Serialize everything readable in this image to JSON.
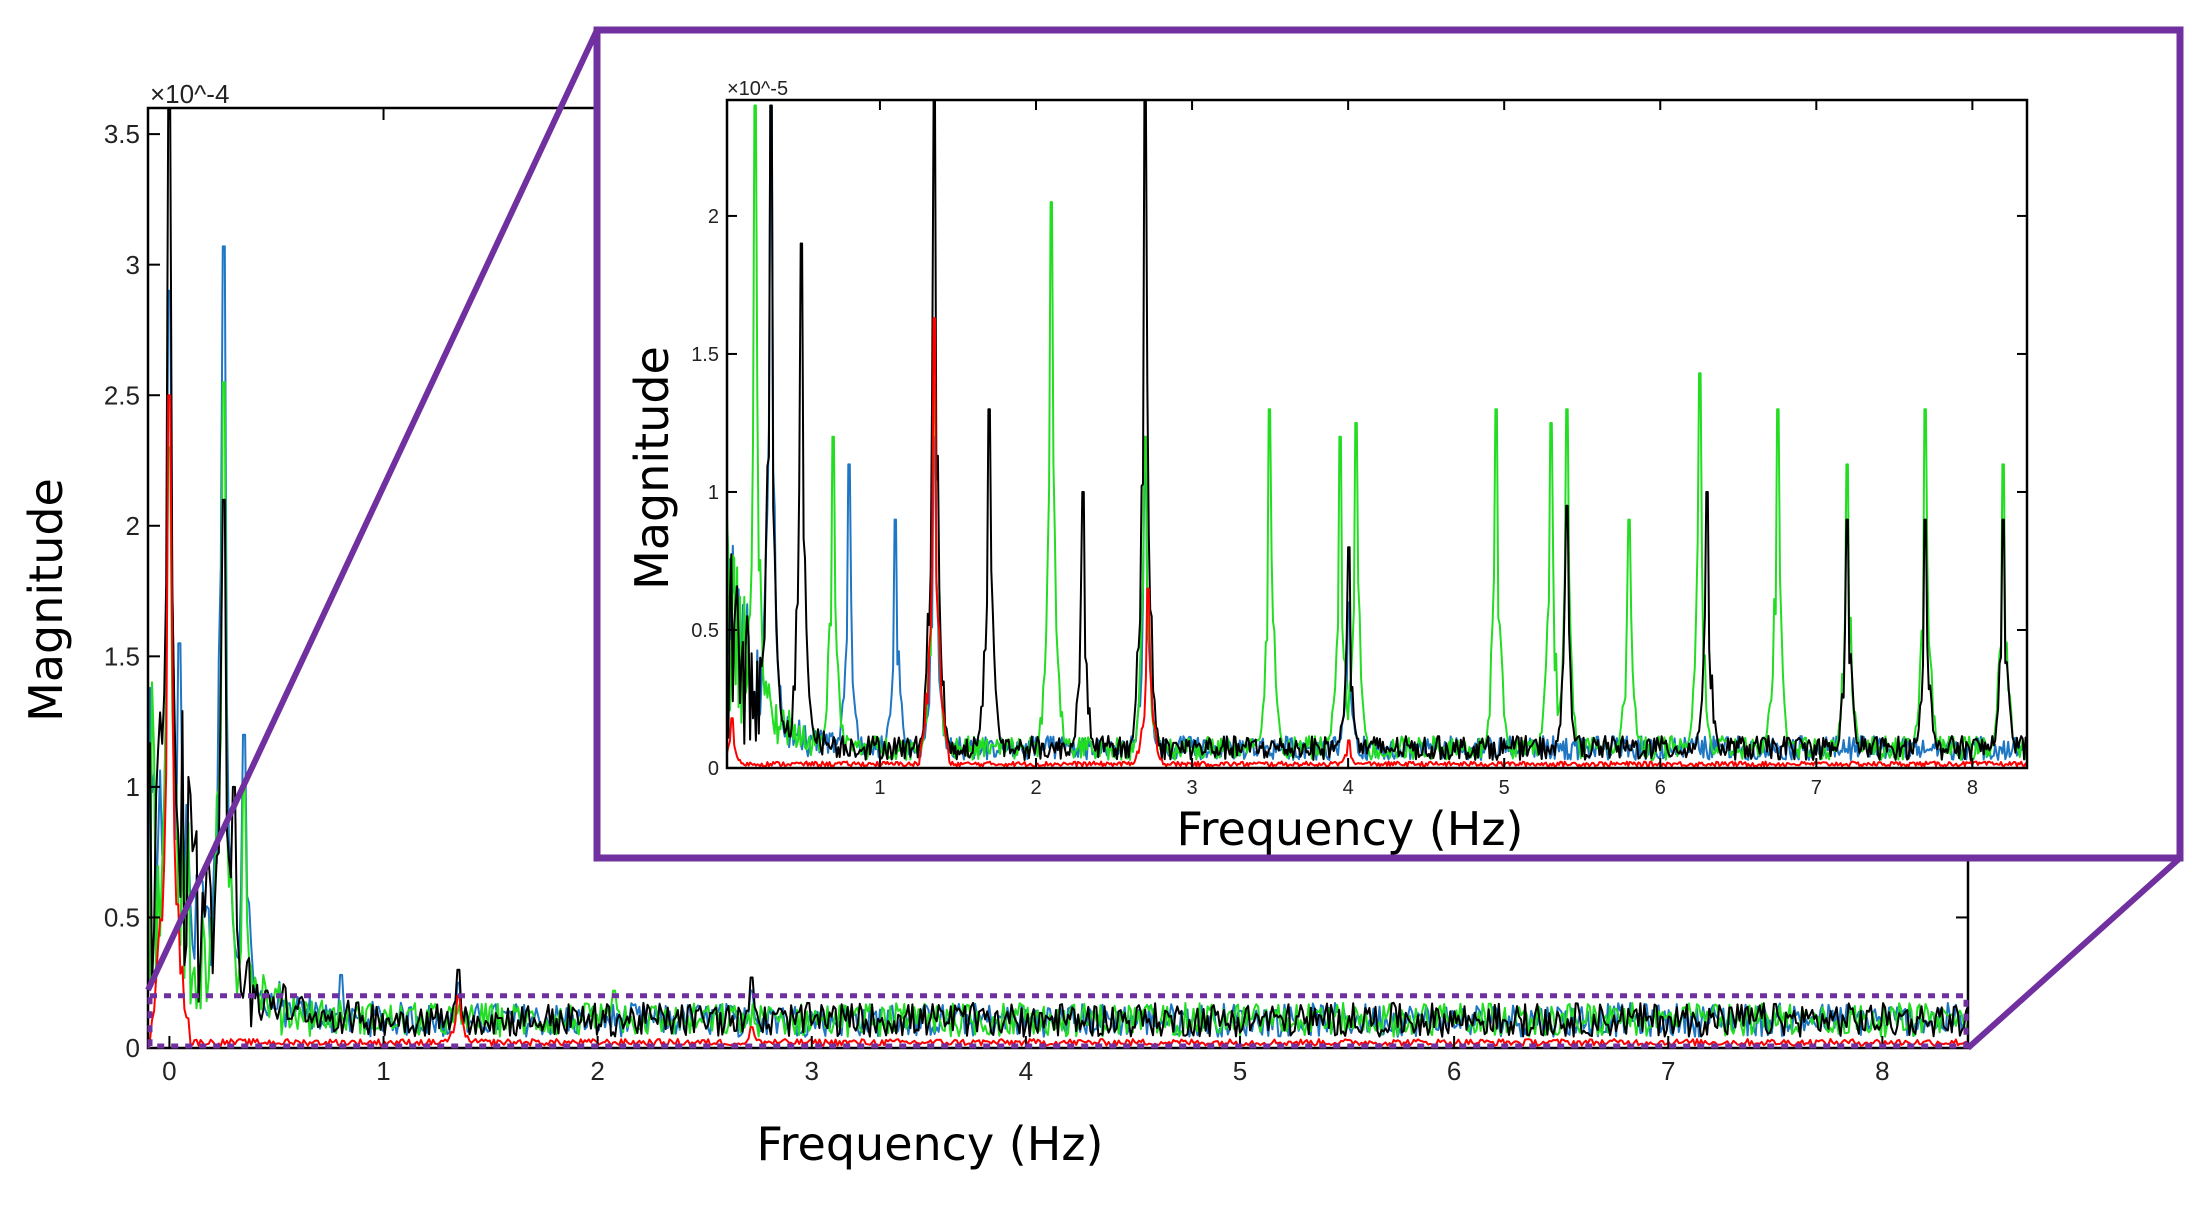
{
  "chart_data": [
    {
      "id": "main",
      "type": "line",
      "title": "",
      "xlabel": "Frequency (Hz)",
      "ylabel": "Magnitude",
      "y_exponent_label": "×10^-4",
      "y_scale": 0.0001,
      "xlim": [
        -0.1,
        8.4
      ],
      "ylim": [
        0,
        3.6
      ],
      "x_ticks": [
        0,
        1,
        2,
        3,
        4,
        5,
        6,
        7,
        8
      ],
      "x_tick_labels": [
        "0",
        "1",
        "2",
        "3",
        "4",
        "5",
        "6",
        "7",
        "8"
      ],
      "y_ticks": [
        0,
        0.5,
        1,
        1.5,
        2,
        2.5,
        3,
        3.5
      ],
      "y_tick_labels": [
        "0",
        "0.5",
        "1",
        "1.5",
        "2",
        "2.5",
        "3",
        "3.5"
      ],
      "grid": false,
      "legend": "none",
      "zoom_region": {
        "x": [
          -0.1,
          8.4
        ],
        "y": [
          0,
          0.2
        ]
      },
      "series": [
        {
          "color": "#1f77c4",
          "peaks": [
            [
              0.0,
              2.9
            ],
            [
              0.25,
              3.07
            ],
            [
              0.35,
              1.2
            ],
            [
              0.05,
              1.55
            ],
            [
              0.8,
              0.28
            ],
            [
              1.35,
              0.25
            ],
            [
              2.72,
              0.22
            ]
          ]
        },
        {
          "color": "#22dd22",
          "peaks": [
            [
              0.0,
              2.3
            ],
            [
              0.25,
              2.55
            ],
            [
              0.35,
              1.0
            ],
            [
              2.08,
              0.22
            ],
            [
              3.5,
              0.14
            ],
            [
              4.05,
              0.12
            ],
            [
              5.35,
              0.14
            ],
            [
              5.95,
              0.12
            ],
            [
              6.3,
              0.15
            ],
            [
              6.75,
              0.15
            ],
            [
              7.2,
              0.12
            ],
            [
              7.7,
              0.12
            ],
            [
              8.2,
              0.11
            ]
          ]
        },
        {
          "color": "#000000",
          "peaks": [
            [
              0.0,
              3.6
            ],
            [
              0.25,
              2.1
            ],
            [
              0.3,
              1.0
            ],
            [
              1.35,
              0.3
            ],
            [
              2.72,
              0.27
            ],
            [
              4.0,
              0.08
            ],
            [
              5.4,
              0.13
            ],
            [
              6.3,
              0.12
            ],
            [
              7.2,
              0.1
            ]
          ]
        },
        {
          "color": "#ff0000",
          "peaks": [
            [
              0.0,
              2.5
            ],
            [
              1.35,
              0.2
            ],
            [
              2.72,
              0.08
            ]
          ]
        }
      ]
    },
    {
      "id": "inset",
      "type": "line",
      "title": "",
      "xlabel": "Frequency (Hz)",
      "ylabel": "Magnitude",
      "y_exponent_label": "×10^-5",
      "y_scale": 1e-05,
      "xlim": [
        0.02,
        8.35
      ],
      "ylim": [
        0,
        2.42
      ],
      "x_ticks": [
        1,
        2,
        3,
        4,
        5,
        6,
        7,
        8
      ],
      "x_tick_labels": [
        "1",
        "2",
        "3",
        "4",
        "5",
        "6",
        "7",
        "8"
      ],
      "y_ticks": [
        0,
        0.5,
        1,
        1.5,
        2
      ],
      "y_tick_labels": [
        "0",
        "0.5",
        "1",
        "1.5",
        "2"
      ],
      "grid": false,
      "legend": "none",
      "series": [
        {
          "color": "#1f77c4",
          "peaks": [
            [
              0.3,
              2.4
            ],
            [
              0.8,
              1.1
            ],
            [
              1.1,
              0.9
            ],
            [
              1.35,
              1.2
            ],
            [
              2.7,
              1.1
            ],
            [
              4.0,
              0.6
            ]
          ]
        },
        {
          "color": "#22dd22",
          "peaks": [
            [
              0.2,
              2.4
            ],
            [
              0.7,
              1.2
            ],
            [
              1.35,
              1.4
            ],
            [
              2.1,
              2.05
            ],
            [
              2.7,
              1.2
            ],
            [
              3.5,
              1.3
            ],
            [
              3.95,
              1.2
            ],
            [
              4.05,
              1.25
            ],
            [
              4.95,
              1.3
            ],
            [
              5.3,
              1.25
            ],
            [
              5.4,
              1.3
            ],
            [
              5.8,
              0.9
            ],
            [
              6.25,
              1.43
            ],
            [
              6.75,
              1.3
            ],
            [
              7.2,
              1.1
            ],
            [
              7.7,
              1.3
            ],
            [
              8.2,
              1.1
            ]
          ]
        },
        {
          "color": "#000000",
          "peaks": [
            [
              0.3,
              2.4
            ],
            [
              0.5,
              1.9
            ],
            [
              1.35,
              2.42
            ],
            [
              1.7,
              1.3
            ],
            [
              2.7,
              2.42
            ],
            [
              2.3,
              1.0
            ],
            [
              4.0,
              0.8
            ],
            [
              5.4,
              0.95
            ],
            [
              6.3,
              1.0
            ],
            [
              7.2,
              0.9
            ],
            [
              7.7,
              0.9
            ],
            [
              8.2,
              0.9
            ]
          ]
        },
        {
          "color": "#ff0000",
          "peaks": [
            [
              0.05,
              0.18
            ],
            [
              1.35,
              1.63
            ],
            [
              2.72,
              0.65
            ],
            [
              4.0,
              0.1
            ]
          ]
        }
      ]
    }
  ]
}
